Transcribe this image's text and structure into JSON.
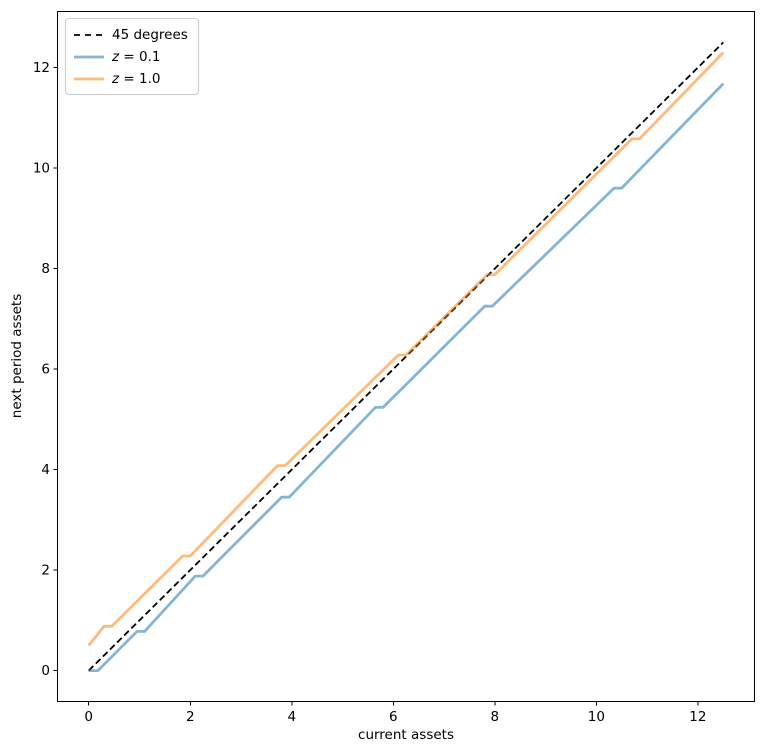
{
  "window": {
    "background": "#ffffff"
  },
  "chart_data": {
    "type": "line",
    "title": "",
    "xlabel": "current assets",
    "ylabel": "next period assets",
    "xlim": [
      -0.625,
      13.125
    ],
    "ylim": [
      -0.625,
      13.125
    ],
    "xticks": [
      0,
      2,
      4,
      6,
      8,
      10,
      12
    ],
    "yticks": [
      0,
      2,
      4,
      6,
      8,
      10,
      12
    ],
    "grid": false,
    "legend": {
      "position": "upper-left",
      "border_color": "#cccccc"
    },
    "axis": {
      "spine_color": "#000000",
      "tick_color": "#000000",
      "tick_label_color": "#000000"
    },
    "series": [
      {
        "name": "45 degrees",
        "legend_label": "45 degrees",
        "math_label": false,
        "color": "#000000",
        "style": "dashed",
        "width": 1.8,
        "opacity": 1,
        "points": [
          [
            0,
            0
          ],
          [
            12.5,
            12.5
          ]
        ]
      },
      {
        "name": "z = 0.1",
        "legend_label": "z = 0.1",
        "math_label": true,
        "color": "#1f77b4",
        "style": "solid",
        "width": 2.8,
        "opacity": 0.55,
        "points": [
          [
            0,
            0
          ],
          [
            0.18,
            0
          ],
          [
            0.95,
            0.78
          ],
          [
            1.1,
            0.78
          ],
          [
            2.1,
            1.88
          ],
          [
            2.25,
            1.88
          ],
          [
            3.8,
            3.45
          ],
          [
            3.95,
            3.45
          ],
          [
            5.65,
            5.24
          ],
          [
            5.8,
            5.24
          ],
          [
            7.8,
            7.25
          ],
          [
            7.95,
            7.25
          ],
          [
            10.35,
            9.6
          ],
          [
            10.5,
            9.6
          ],
          [
            12.5,
            11.68
          ]
        ]
      },
      {
        "name": "z = 1.0",
        "legend_label": "z = 1.0",
        "math_label": true,
        "color": "#ff7f0e",
        "style": "solid",
        "width": 2.8,
        "opacity": 0.55,
        "points": [
          [
            0,
            0.5
          ],
          [
            0.3,
            0.88
          ],
          [
            0.45,
            0.88
          ],
          [
            1.85,
            2.28
          ],
          [
            2,
            2.28
          ],
          [
            3.72,
            4.08
          ],
          [
            3.87,
            4.08
          ],
          [
            6.1,
            6.28
          ],
          [
            6.25,
            6.28
          ],
          [
            7.85,
            7.88
          ],
          [
            8,
            7.88
          ],
          [
            10.7,
            10.58
          ],
          [
            10.85,
            10.58
          ],
          [
            12.5,
            12.3
          ]
        ]
      }
    ]
  }
}
